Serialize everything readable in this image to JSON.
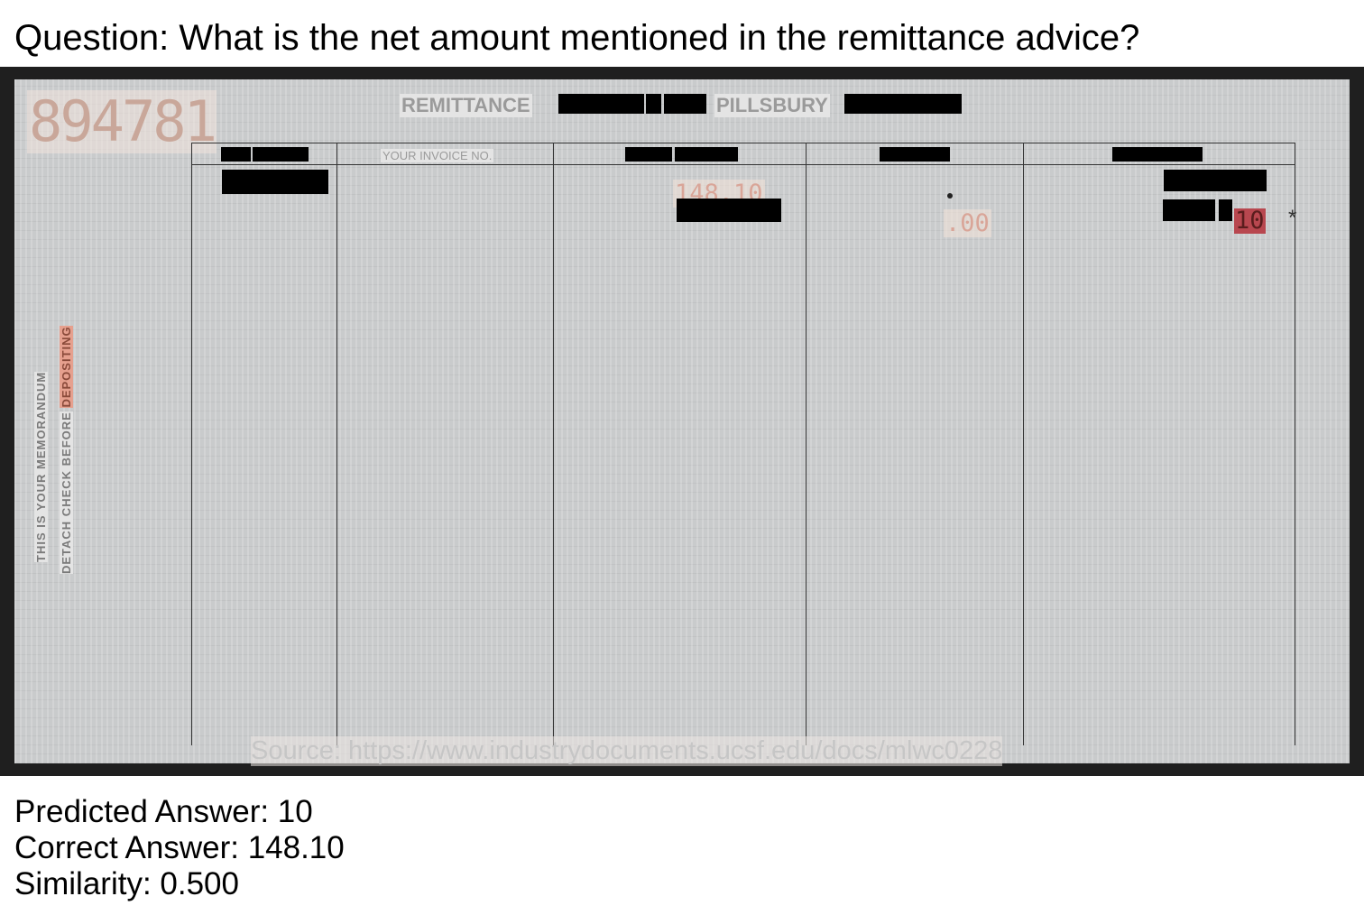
{
  "question": "Question: What is the net amount mentioned in the remittance advice?",
  "document": {
    "serial": "894781",
    "remittance_label": "REMITTANCE",
    "company_label": "PILLSBURY",
    "invoice_header": "YOUR INVOICE NO.",
    "gross_amount": "148.10",
    "discount_amount": ".00",
    "net_amount_visible": "10",
    "asterisk": "*",
    "side_text_line1": "THIS IS YOUR MEMORANDUM",
    "side_text_line2_prefix": "DETACH CHECK BEFORE",
    "side_text_line2_highlight": "DEPOSITING",
    "source": "Source: https://www.industrydocuments.ucsf.edu/docs/mlwc0228"
  },
  "predicted": "Predicted Answer: 10",
  "correct": "Correct Answer: 148.10",
  "similarity": "Similarity: 0.500",
  "colors": {
    "frame": "#1f1f1f",
    "paper": "#c9cbcc",
    "stamp_ink": "#d9a598",
    "net_highlight": "#b8474f"
  }
}
